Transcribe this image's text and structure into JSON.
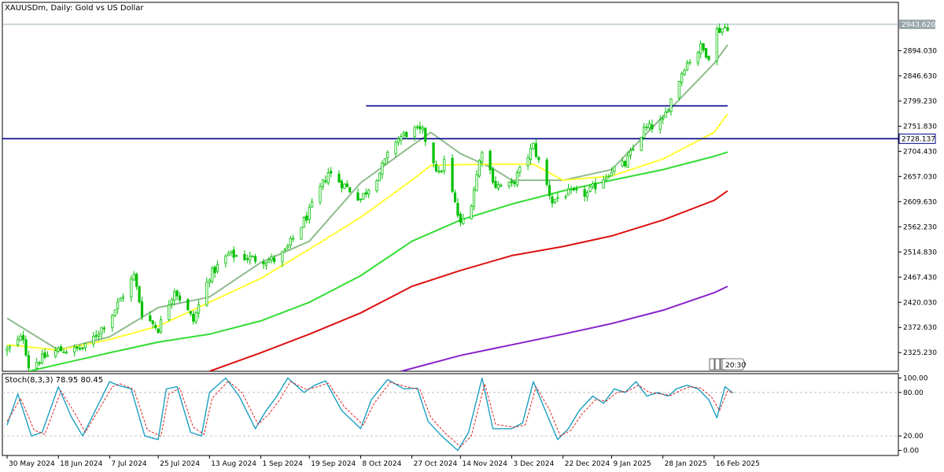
{
  "chart_data": [
    {
      "type": "candlestick",
      "title": "XAUUSDm, Daily:  Gold vs US Dollar",
      "ylim": [
        2290,
        2985
      ],
      "y_ticks": [
        "2943.620",
        "2894.030",
        "2846.630",
        "2799.230",
        "2751.830",
        "2704.430",
        "2657.030",
        "2609.630",
        "2562.230",
        "2514.830",
        "2467.430",
        "2420.030",
        "2372.630",
        "2325.230"
      ],
      "current_price_label": "2943.620",
      "current_price": 2943.62,
      "horizontal_lines": [
        {
          "label": "2728.137",
          "value": 2728.137,
          "color": "#00008b"
        },
        {
          "label": "",
          "value": 2790,
          "color": "#00008b",
          "from_date": "10 Oct 2024",
          "to_date": "21 Feb 2025"
        }
      ],
      "x_labels": [
        "30 May 2024",
        "18 Jun 2024",
        "7 Jul 2024",
        "25 Jul 2024",
        "13 Aug 2024",
        "1 Sep 2024",
        "19 Sep 2024",
        "8 Oct 2024",
        "27 Oct 2024",
        "14 Nov 2024",
        "3 Dec 2024",
        "22 Dec 2024",
        "9 Jan 2025",
        "28 Jan 2025",
        "16 Feb 2025"
      ],
      "close_anchors": [
        [
          "30 May 2024",
          2330
        ],
        [
          "5 Jun 2024",
          2355
        ],
        [
          "7 Jun 2024",
          2300
        ],
        [
          "14 Jun 2024",
          2320
        ],
        [
          "18 Jun 2024",
          2330
        ],
        [
          "24 Jun 2024",
          2330
        ],
        [
          "28 Jun 2024",
          2335
        ],
        [
          "7 Jul 2024",
          2390
        ],
        [
          "16 Jul 2024",
          2470
        ],
        [
          "19 Jul 2024",
          2400
        ],
        [
          "25 Jul 2024",
          2370
        ],
        [
          "31 Jul 2024",
          2445
        ],
        [
          "7 Aug 2024",
          2385
        ],
        [
          "13 Aug 2024",
          2470
        ],
        [
          "20 Aug 2024",
          2510
        ],
        [
          "1 Sep 2024",
          2500
        ],
        [
          "6 Sep 2024",
          2500
        ],
        [
          "10 Sep 2024",
          2515
        ],
        [
          "19 Sep 2024",
          2590
        ],
        [
          "26 Sep 2024",
          2665
        ],
        [
          "8 Oct 2024",
          2615
        ],
        [
          "15 Oct 2024",
          2665
        ],
        [
          "21 Oct 2024",
          2725
        ],
        [
          "27 Oct 2024",
          2745
        ],
        [
          "31 Oct 2024",
          2740
        ],
        [
          "6 Nov 2024",
          2660
        ],
        [
          "8 Nov 2024",
          2685
        ],
        [
          "14 Nov 2024",
          2565
        ],
        [
          "18 Nov 2024",
          2610
        ],
        [
          "22 Nov 2024",
          2710
        ],
        [
          "27 Nov 2024",
          2640
        ],
        [
          "3 Dec 2024",
          2640
        ],
        [
          "11 Dec 2024",
          2715
        ],
        [
          "18 Dec 2024",
          2610
        ],
        [
          "22 Dec 2024",
          2625
        ],
        [
          "31 Dec 2024",
          2625
        ],
        [
          "9 Jan 2025",
          2670
        ],
        [
          "14 Jan 2025",
          2680
        ],
        [
          "21 Jan 2025",
          2745
        ],
        [
          "28 Jan 2025",
          2760
        ],
        [
          "30 Jan 2025",
          2790
        ],
        [
          "5 Feb 2025",
          2865
        ],
        [
          "11 Feb 2025",
          2900
        ],
        [
          "14 Feb 2025",
          2885
        ],
        [
          "16 Feb 2025",
          2930
        ],
        [
          "21 Feb 2025",
          2940
        ]
      ],
      "moving_averages": [
        {
          "color": "#8fbc8f",
          "anchors": [
            [
              "30 May 2024",
              2390
            ],
            [
              "18 Jun 2024",
              2330
            ],
            [
              "7 Jul 2024",
              2355
            ],
            [
              "25 Jul 2024",
              2410
            ],
            [
              "13 Aug 2024",
              2430
            ],
            [
              "1 Sep 2024",
              2495
            ],
            [
              "19 Sep 2024",
              2535
            ],
            [
              "8 Oct 2024",
              2645
            ],
            [
              "27 Oct 2024",
              2715
            ],
            [
              "3 Nov 2024",
              2740
            ],
            [
              "14 Nov 2024",
              2700
            ],
            [
              "26 Nov 2024",
              2672
            ],
            [
              "3 Dec 2024",
              2650
            ],
            [
              "22 Dec 2024",
              2650
            ],
            [
              "9 Jan 2025",
              2670
            ],
            [
              "28 Jan 2025",
              2770
            ],
            [
              "16 Feb 2025",
              2870
            ],
            [
              "21 Feb 2025",
              2905
            ]
          ]
        },
        {
          "color": "#ffff33",
          "anchors": [
            [
              "30 May 2024",
              2340
            ],
            [
              "18 Jun 2024",
              2330
            ],
            [
              "7 Jul 2024",
              2350
            ],
            [
              "25 Jul 2024",
              2375
            ],
            [
              "13 Aug 2024",
              2420
            ],
            [
              "1 Sep 2024",
              2465
            ],
            [
              "19 Sep 2024",
              2520
            ],
            [
              "8 Oct 2024",
              2580
            ],
            [
              "27 Oct 2024",
              2650
            ],
            [
              "3 Nov 2024",
              2678
            ],
            [
              "22 Nov 2024",
              2680
            ],
            [
              "11 Dec 2024",
              2680
            ],
            [
              "22 Dec 2024",
              2650
            ],
            [
              "9 Jan 2025",
              2658
            ],
            [
              "28 Jan 2025",
              2690
            ],
            [
              "16 Feb 2025",
              2740
            ],
            [
              "21 Feb 2025",
              2775
            ]
          ]
        },
        {
          "color": "#33dd33",
          "anchors": [
            [
              "7 Jun 2024",
              2290
            ],
            [
              "18 Jun 2024",
              2303
            ],
            [
              "7 Jul 2024",
              2325
            ],
            [
              "25 Jul 2024",
              2345
            ],
            [
              "13 Aug 2024",
              2360
            ],
            [
              "1 Sep 2024",
              2385
            ],
            [
              "19 Sep 2024",
              2420
            ],
            [
              "8 Oct 2024",
              2470
            ],
            [
              "27 Oct 2024",
              2535
            ],
            [
              "14 Nov 2024",
              2575
            ],
            [
              "3 Dec 2024",
              2605
            ],
            [
              "22 Dec 2024",
              2630
            ],
            [
              "9 Jan 2025",
              2650
            ],
            [
              "28 Jan 2025",
              2670
            ],
            [
              "16 Feb 2025",
              2695
            ],
            [
              "21 Feb 2025",
              2703
            ]
          ]
        },
        {
          "color": "#dd1111",
          "anchors": [
            [
              "13 Aug 2024",
              2290
            ],
            [
              "1 Sep 2024",
              2325
            ],
            [
              "19 Sep 2024",
              2360
            ],
            [
              "8 Oct 2024",
              2400
            ],
            [
              "27 Oct 2024",
              2450
            ],
            [
              "14 Nov 2024",
              2480
            ],
            [
              "3 Dec 2024",
              2508
            ],
            [
              "22 Dec 2024",
              2525
            ],
            [
              "9 Jan 2025",
              2545
            ],
            [
              "28 Jan 2025",
              2575
            ],
            [
              "16 Feb 2025",
              2612
            ],
            [
              "21 Feb 2025",
              2630
            ]
          ]
        },
        {
          "color": "#8822cc",
          "anchors": [
            [
              "23 Oct 2024",
              2290
            ],
            [
              "14 Nov 2024",
              2320
            ],
            [
              "3 Dec 2024",
              2340
            ],
            [
              "22 Dec 2024",
              2360
            ],
            [
              "9 Jan 2025",
              2380
            ],
            [
              "28 Jan 2025",
              2405
            ],
            [
              "16 Feb 2025",
              2438
            ],
            [
              "21 Feb 2025",
              2450
            ]
          ]
        }
      ],
      "time_marker_label": "20:30"
    },
    {
      "type": "line",
      "title": "Stoch(8,3,3) 78.95 80.45",
      "ylim": [
        -7,
        106
      ],
      "y_ticks": [
        "100.00",
        "80.00",
        "20.00",
        "0.00"
      ],
      "levels": [
        80,
        20
      ],
      "series": [
        {
          "color": "#1a9fc2",
          "anchors": [
            [
              "30 May 2024",
              35
            ],
            [
              "3 Jun 2024",
              78
            ],
            [
              "8 Jun 2024",
              20
            ],
            [
              "12 Jun 2024",
              25
            ],
            [
              "18 Jun 2024",
              88
            ],
            [
              "23 Jun 2024",
              45
            ],
            [
              "27 Jun 2024",
              20
            ],
            [
              "7 Jul 2024",
              95
            ],
            [
              "10 Jul 2024",
              90
            ],
            [
              "15 Jul 2024",
              85
            ],
            [
              "20 Jul 2024",
              20
            ],
            [
              "25 Jul 2024",
              15
            ],
            [
              "28 Jul 2024",
              85
            ],
            [
              "1 Aug 2024",
              88
            ],
            [
              "6 Aug 2024",
              25
            ],
            [
              "10 Aug 2024",
              20
            ],
            [
              "13 Aug 2024",
              80
            ],
            [
              "19 Aug 2024",
              100
            ],
            [
              "24 Aug 2024",
              75
            ],
            [
              "30 Aug 2024",
              30
            ],
            [
              "3 Sep 2024",
              55
            ],
            [
              "7 Sep 2024",
              75
            ],
            [
              "11 Sep 2024",
              100
            ],
            [
              "17 Sep 2024",
              80
            ],
            [
              "21 Sep 2024",
              90
            ],
            [
              "25 Sep 2024",
              96
            ],
            [
              "1 Oct 2024",
              55
            ],
            [
              "8 Oct 2024",
              30
            ],
            [
              "12 Oct 2024",
              70
            ],
            [
              "18 Oct 2024",
              98
            ],
            [
              "24 Oct 2024",
              85
            ],
            [
              "29 Oct 2024",
              86
            ],
            [
              "2 Nov 2024",
              40
            ],
            [
              "7 Nov 2024",
              20
            ],
            [
              "13 Nov 2024",
              0
            ],
            [
              "17 Nov 2024",
              25
            ],
            [
              "22 Nov 2024",
              100
            ],
            [
              "26 Nov 2024",
              30
            ],
            [
              "3 Dec 2024",
              30
            ],
            [
              "7 Dec 2024",
              38
            ],
            [
              "11 Dec 2024",
              95
            ],
            [
              "16 Dec 2024",
              50
            ],
            [
              "20 Dec 2024",
              15
            ],
            [
              "24 Dec 2024",
              30
            ],
            [
              "28 Dec 2024",
              55
            ],
            [
              "2 Jan 2025",
              75
            ],
            [
              "6 Jan 2025",
              65
            ],
            [
              "10 Jan 2025",
              85
            ],
            [
              "14 Jan 2025",
              80
            ],
            [
              "18 Jan 2025",
              95
            ],
            [
              "22 Jan 2025",
              75
            ],
            [
              "26 Jan 2025",
              80
            ],
            [
              "30 Jan 2025",
              75
            ],
            [
              "2 Feb 2025",
              85
            ],
            [
              "6 Feb 2025",
              90
            ],
            [
              "10 Feb 2025",
              85
            ],
            [
              "14 Feb 2025",
              70
            ],
            [
              "17 Feb 2025",
              45
            ],
            [
              "20 Feb 2025",
              88
            ],
            [
              "23 Feb 2025",
              79
            ]
          ]
        },
        {
          "color": "#dd2222",
          "dashed": true,
          "anchors": [
            [
              "30 May 2024",
              40
            ],
            [
              "4 Jun 2024",
              72
            ],
            [
              "9 Jun 2024",
              28
            ],
            [
              "13 Jun 2024",
              22
            ],
            [
              "19 Jun 2024",
              82
            ],
            [
              "24 Jun 2024",
              52
            ],
            [
              "28 Jun 2024",
              25
            ],
            [
              "8 Jul 2024",
              88
            ],
            [
              "11 Jul 2024",
              92
            ],
            [
              "16 Jul 2024",
              84
            ],
            [
              "21 Jul 2024",
              28
            ],
            [
              "26 Jul 2024",
              20
            ],
            [
              "29 Jul 2024",
              78
            ],
            [
              "2 Aug 2024",
              86
            ],
            [
              "7 Aug 2024",
              32
            ],
            [
              "11 Aug 2024",
              22
            ],
            [
              "14 Aug 2024",
              72
            ],
            [
              "20 Aug 2024",
              96
            ],
            [
              "25 Aug 2024",
              80
            ],
            [
              "31 Aug 2024",
              36
            ],
            [
              "4 Sep 2024",
              50
            ],
            [
              "8 Sep 2024",
              70
            ],
            [
              "12 Sep 2024",
              95
            ],
            [
              "18 Sep 2024",
              84
            ],
            [
              "22 Sep 2024",
              88
            ],
            [
              "26 Sep 2024",
              93
            ],
            [
              "2 Oct 2024",
              60
            ],
            [
              "9 Oct 2024",
              35
            ],
            [
              "13 Oct 2024",
              65
            ],
            [
              "19 Oct 2024",
              94
            ],
            [
              "25 Oct 2024",
              88
            ],
            [
              "30 Oct 2024",
              84
            ],
            [
              "3 Nov 2024",
              46
            ],
            [
              "8 Nov 2024",
              25
            ],
            [
              "14 Nov 2024",
              5
            ],
            [
              "18 Nov 2024",
              20
            ],
            [
              "23 Nov 2024",
              92
            ],
            [
              "27 Nov 2024",
              36
            ],
            [
              "4 Dec 2024",
              32
            ],
            [
              "8 Dec 2024",
              35
            ],
            [
              "12 Dec 2024",
              88
            ],
            [
              "17 Dec 2024",
              56
            ],
            [
              "21 Dec 2024",
              20
            ],
            [
              "25 Dec 2024",
              28
            ],
            [
              "29 Dec 2024",
              50
            ],
            [
              "3 Jan 2025",
              70
            ],
            [
              "7 Jan 2025",
              68
            ],
            [
              "11 Jan 2025",
              80
            ],
            [
              "15 Jan 2025",
              82
            ],
            [
              "19 Jan 2025",
              90
            ],
            [
              "23 Jan 2025",
              80
            ],
            [
              "27 Jan 2025",
              78
            ],
            [
              "31 Jan 2025",
              76
            ],
            [
              "3 Feb 2025",
              82
            ],
            [
              "7 Feb 2025",
              88
            ],
            [
              "11 Feb 2025",
              86
            ],
            [
              "15 Feb 2025",
              74
            ],
            [
              "18 Feb 2025",
              55
            ],
            [
              "21 Feb 2025",
              82
            ],
            [
              "23 Feb 2025",
              80
            ]
          ]
        }
      ]
    }
  ]
}
